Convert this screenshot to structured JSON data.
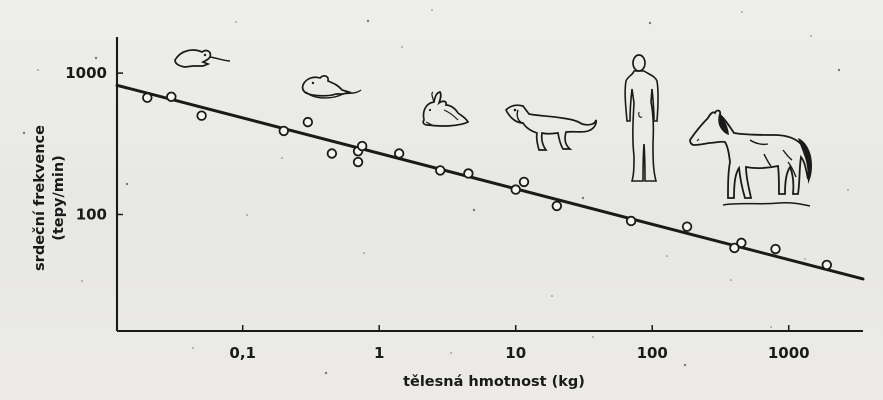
{
  "chart_data": {
    "type": "scatter",
    "xlabel": "tělesná hmotnost (kg)",
    "ylabel_line1": "srdeční frekvence",
    "ylabel_line2": "(tepy/min)",
    "x_scale": "log",
    "y_scale": "log",
    "xlim": [
      0.012,
      3500
    ],
    "ylim": [
      15,
      1800
    ],
    "x_ticks": [
      {
        "value": 0.1,
        "label": "0,1"
      },
      {
        "value": 1,
        "label": "1"
      },
      {
        "value": 10,
        "label": "10"
      },
      {
        "value": 100,
        "label": "100"
      },
      {
        "value": 1000,
        "label": "1000"
      }
    ],
    "y_ticks": [
      {
        "value": 100,
        "label": "100"
      },
      {
        "value": 1000,
        "label": "1000"
      }
    ],
    "points": [
      {
        "x": 0.02,
        "y": 670
      },
      {
        "x": 0.03,
        "y": 680
      },
      {
        "x": 0.05,
        "y": 500
      },
      {
        "x": 0.2,
        "y": 390
      },
      {
        "x": 0.3,
        "y": 450
      },
      {
        "x": 0.45,
        "y": 270
      },
      {
        "x": 0.7,
        "y": 280
      },
      {
        "x": 0.75,
        "y": 305
      },
      {
        "x": 0.7,
        "y": 235
      },
      {
        "x": 1.4,
        "y": 270
      },
      {
        "x": 2.8,
        "y": 205
      },
      {
        "x": 4.5,
        "y": 195
      },
      {
        "x": 10,
        "y": 150
      },
      {
        "x": 11.5,
        "y": 170
      },
      {
        "x": 20,
        "y": 115
      },
      {
        "x": 70,
        "y": 90
      },
      {
        "x": 180,
        "y": 82
      },
      {
        "x": 400,
        "y": 58
      },
      {
        "x": 450,
        "y": 63
      },
      {
        "x": 800,
        "y": 57
      },
      {
        "x": 1900,
        "y": 44
      }
    ],
    "fit_line": {
      "x": [
        0.012,
        3500
      ],
      "y": [
        820,
        35
      ]
    },
    "grid": false,
    "legend": "none",
    "colors": {
      "ink": "#1a1a1a",
      "paper": "#e9e9e6"
    },
    "icons": [
      {
        "name": "mouse-icon",
        "x": 0.04
      },
      {
        "name": "rat-icon",
        "x": 0.4
      },
      {
        "name": "rabbit-icon",
        "x": 3
      },
      {
        "name": "dog-icon",
        "x": 15
      },
      {
        "name": "human-icon",
        "x": 70
      },
      {
        "name": "horse-icon",
        "x": 500
      }
    ]
  }
}
